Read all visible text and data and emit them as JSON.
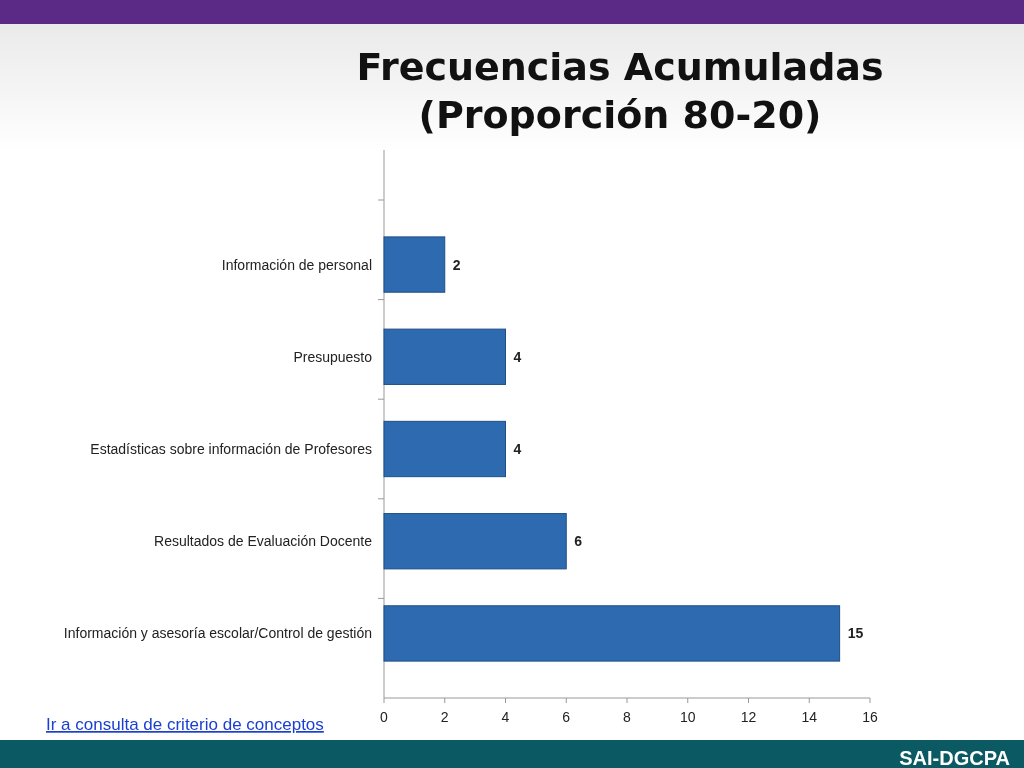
{
  "chart_data": {
    "type": "bar",
    "orientation": "horizontal",
    "title": "Frecuencias Acumuladas\n(Proporción 80-20)",
    "categories": [
      "Información de personal",
      "Presupuesto",
      "Estadísticas sobre información de Profesores",
      "Resultados de Evaluación Docente",
      "Información y asesoría escolar/Control de gestión"
    ],
    "values": [
      2,
      4,
      4,
      6,
      15
    ],
    "color": "#2e6ab0",
    "xlim": [
      0,
      16
    ],
    "xticks": [
      0,
      2,
      4,
      6,
      8,
      10,
      12,
      14,
      16
    ],
    "grid": false,
    "data_labels": true,
    "annotations": [
      "Ir a consulta de criterio de conceptos",
      "SAI-DGCPA"
    ]
  }
}
